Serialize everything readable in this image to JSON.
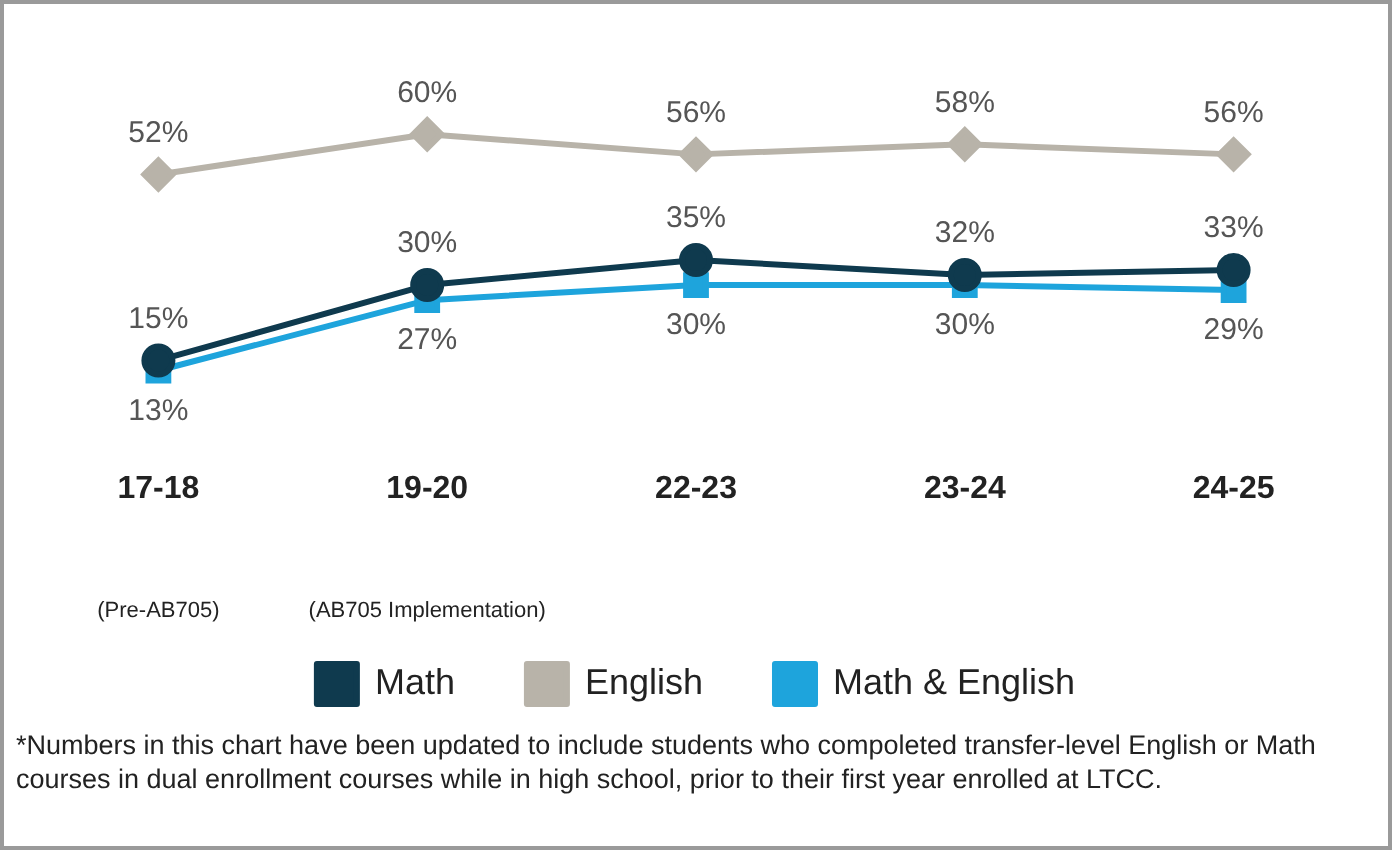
{
  "chart_data": {
    "type": "line",
    "categories": [
      "17-18\n(Pre-AB705)",
      "19-20\n(AB705 Implementation)",
      "22-23",
      "23-24",
      "24-25"
    ],
    "series": [
      {
        "name": "Math",
        "color": "#0f3a4e",
        "marker": "circle",
        "values": [
          15,
          30,
          35,
          32,
          33
        ],
        "value_labels": [
          "15%",
          "30%",
          "35%",
          "32%",
          "33%"
        ]
      },
      {
        "name": "English",
        "color": "#b8b3a9",
        "marker": "diamond",
        "values": [
          52,
          60,
          56,
          58,
          56
        ],
        "value_labels": [
          "52%",
          "60%",
          "56%",
          "58%",
          "56%"
        ]
      },
      {
        "name": "Math & English",
        "color": "#1ea4dc",
        "marker": "square",
        "values": [
          13,
          27,
          30,
          30,
          29
        ],
        "value_labels": [
          "13%",
          "27%",
          "30%",
          "30%",
          "29%"
        ]
      }
    ],
    "tick_labels": "x",
    "grid": false,
    "legend": "bottom",
    "annotations": [
      "*Numbers in this chart have been updated to include students who compoleted transfer-level English or Math courses in dual enrollment courses while in high school, prior to their first year enrolled at LTCC."
    ]
  }
}
